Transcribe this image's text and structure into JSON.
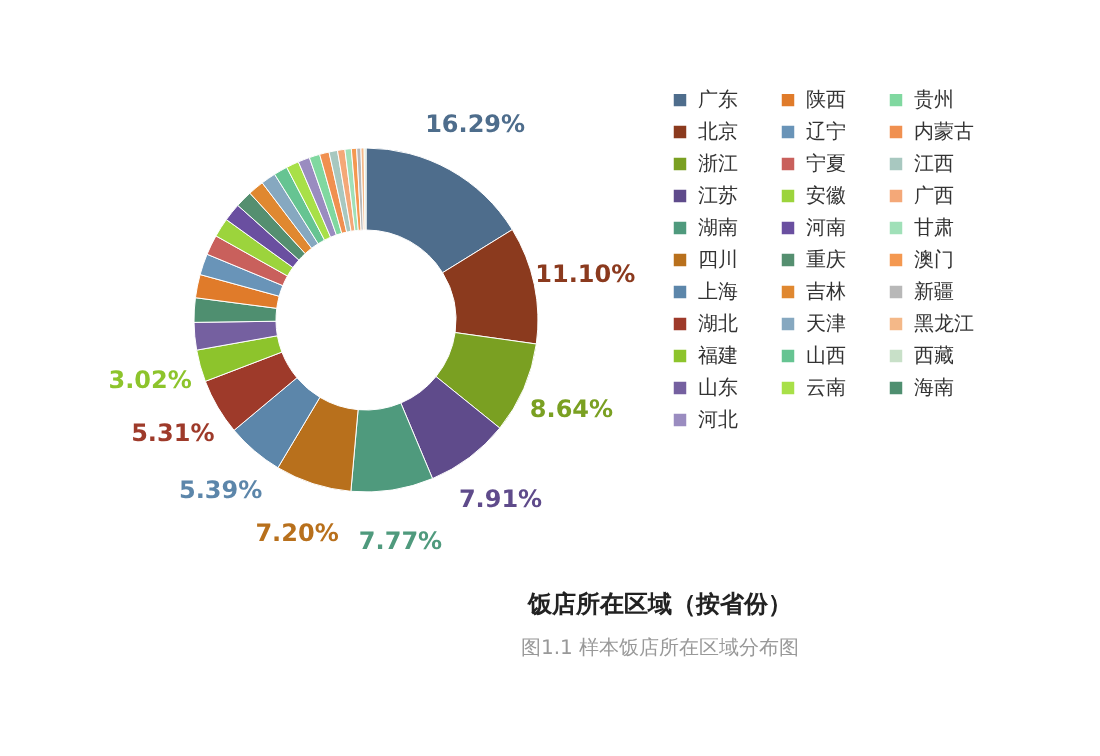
{
  "chart_data": {
    "type": "donut",
    "title": "饭店所在区域（按省份）",
    "annotations": [
      "图1.1 样本饭店所在区域分布图"
    ],
    "categories": [
      "广东",
      "北京",
      "浙江",
      "江苏",
      "湖南",
      "四川",
      "上海",
      "湖北",
      "福建",
      "山东",
      "海南",
      "陕西",
      "辽宁",
      "宁夏",
      "安徽",
      "河南",
      "重庆",
      "吉林",
      "天津",
      "山西",
      "云南",
      "河北",
      "贵州",
      "内蒙古",
      "江西",
      "广西",
      "甘肃",
      "澳门",
      "新疆",
      "黑龙江",
      "西藏"
    ],
    "values": [
      16.29,
      11.1,
      8.64,
      7.91,
      7.77,
      7.2,
      5.39,
      5.31,
      3.02,
      2.6,
      2.3,
      2.2,
      2.0,
      1.9,
      1.8,
      1.7,
      1.6,
      1.5,
      1.4,
      1.3,
      1.2,
      1.1,
      1.0,
      0.9,
      0.8,
      0.7,
      0.6,
      0.5,
      0.4,
      0.3,
      0.17
    ],
    "value_labels": [
      "16.29%",
      "11.10%",
      "8.64%",
      "7.91%",
      "7.77%",
      "7.20%",
      "5.39%",
      "5.31%",
      "3.02%",
      null,
      null,
      null,
      null,
      null,
      null,
      null,
      null,
      null,
      null,
      null,
      null,
      null,
      null,
      null,
      null,
      null,
      null,
      null,
      null,
      null,
      null
    ],
    "colors": [
      "#4e6d8c",
      "#8b3a1e",
      "#7aa022",
      "#5f4b8b",
      "#4f9a7d",
      "#b8701c",
      "#5c86aa",
      "#9e3a2a",
      "#8dc42c",
      "#7560a0",
      "#4f8f70",
      "#e07b2a",
      "#6994b8",
      "#c9605c",
      "#9cd43c",
      "#6a4fa0",
      "#558f70",
      "#e08830",
      "#86a8c0",
      "#66c492",
      "#a8e048",
      "#9a8cc0",
      "#80d8a0",
      "#f09050",
      "#a8c8c0",
      "#f4a878",
      "#a0e0b8",
      "#f49850",
      "#b8b8b8",
      "#f4b888",
      "#c8e0c8"
    ],
    "legend": "right"
  }
}
